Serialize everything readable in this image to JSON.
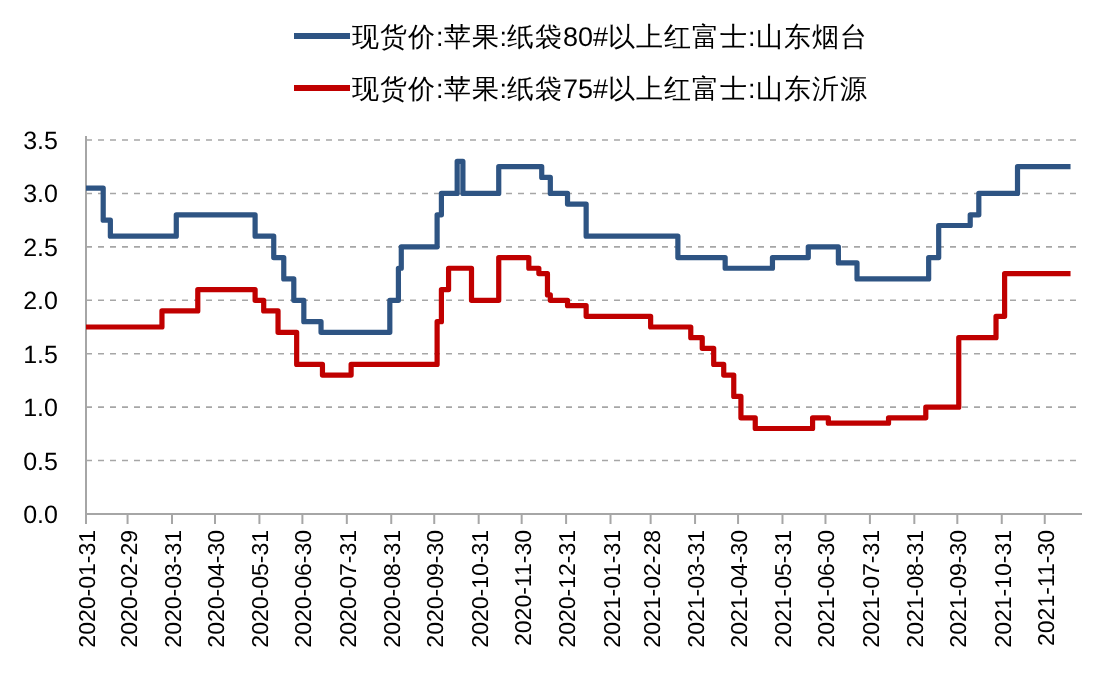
{
  "chart_data": {
    "type": "step",
    "legend": "top",
    "grid": "y",
    "xlim": [
      "2020-01-31",
      "2021-12-26"
    ],
    "xticks": [
      "2020-01-31",
      "2020-02-29",
      "2020-03-31",
      "2020-04-30",
      "2020-05-31",
      "2020-06-30",
      "2020-07-31",
      "2020-08-31",
      "2020-09-30",
      "2020-10-31",
      "2020-11-30",
      "2020-12-31",
      "2021-01-31",
      "2021-02-28",
      "2021-03-31",
      "2021-04-30",
      "2021-05-31",
      "2021-06-30",
      "2021-07-31",
      "2021-08-31",
      "2021-09-30",
      "2021-10-31",
      "2021-11-30"
    ],
    "ylim": [
      0,
      3.5
    ],
    "yticks": [
      {
        "value": 0,
        "label": "0.0"
      },
      {
        "value": 0.5,
        "label": "0.5"
      },
      {
        "value": 1,
        "label": "1.0"
      },
      {
        "value": 1.5,
        "label": "1.5"
      },
      {
        "value": 2,
        "label": "2.0"
      },
      {
        "value": 2.5,
        "label": "2.5"
      },
      {
        "value": 3,
        "label": "3.0"
      },
      {
        "value": 3.5,
        "label": "3.5"
      }
    ],
    "series": [
      {
        "name": "现货价:苹果:纸袋80#以上红富士:山东烟台",
        "color": "#2e5483",
        "x": [
          "2020-01-31",
          "2020-02-12",
          "2020-02-17",
          "2020-04-03",
          "2020-05-28",
          "2020-06-10",
          "2020-06-17",
          "2020-06-24",
          "2020-07-01",
          "2020-07-13",
          "2020-08-30",
          "2020-09-05",
          "2020-09-07",
          "2020-10-02",
          "2020-10-05",
          "2020-10-16",
          "2020-10-20",
          "2020-11-14",
          "2020-12-14",
          "2020-12-20",
          "2021-01-01",
          "2021-01-14",
          "2021-03-19",
          "2021-04-21",
          "2021-05-24",
          "2021-06-18",
          "2021-07-09",
          "2021-07-22",
          "2021-09-10",
          "2021-09-17",
          "2021-10-09",
          "2021-10-15",
          "2021-11-11",
          "2021-12-18"
        ],
        "values": [
          3.05,
          2.75,
          2.6,
          2.8,
          2.6,
          2.4,
          2.2,
          2.0,
          1.8,
          1.7,
          2.0,
          2.3,
          2.5,
          2.8,
          3.0,
          3.3,
          3.0,
          3.25,
          3.15,
          3.0,
          2.9,
          2.6,
          2.4,
          2.3,
          2.4,
          2.5,
          2.35,
          2.2,
          2.4,
          2.7,
          2.8,
          3.0,
          3.25,
          3.25
        ]
      },
      {
        "name": "现货价:苹果:纸袋75#以上红富士:山东沂源",
        "color": "#c00000",
        "x": [
          "2020-01-31",
          "2020-03-24",
          "2020-04-18",
          "2020-05-28",
          "2020-06-03",
          "2020-06-13",
          "2020-06-26",
          "2020-07-14",
          "2020-08-03",
          "2020-10-02",
          "2020-10-05",
          "2020-10-10",
          "2020-10-26",
          "2020-11-14",
          "2020-12-05",
          "2020-12-12",
          "2020-12-18",
          "2020-12-20",
          "2021-01-01",
          "2021-01-14",
          "2021-02-28",
          "2021-03-28",
          "2021-04-05",
          "2021-04-13",
          "2021-04-20",
          "2021-04-27",
          "2021-05-02",
          "2021-05-12",
          "2021-06-21",
          "2021-07-02",
          "2021-08-13",
          "2021-09-08",
          "2021-10-01",
          "2021-10-27",
          "2021-11-02",
          "2021-12-18"
        ],
        "values": [
          1.75,
          1.9,
          2.1,
          2.0,
          1.9,
          1.7,
          1.4,
          1.3,
          1.4,
          1.8,
          2.1,
          2.3,
          2.0,
          2.4,
          2.3,
          2.25,
          2.05,
          2.0,
          1.95,
          1.85,
          1.75,
          1.65,
          1.55,
          1.4,
          1.3,
          1.1,
          0.9,
          0.8,
          0.9,
          0.85,
          0.9,
          1.0,
          1.65,
          1.85,
          2.25,
          2.25
        ]
      }
    ]
  }
}
